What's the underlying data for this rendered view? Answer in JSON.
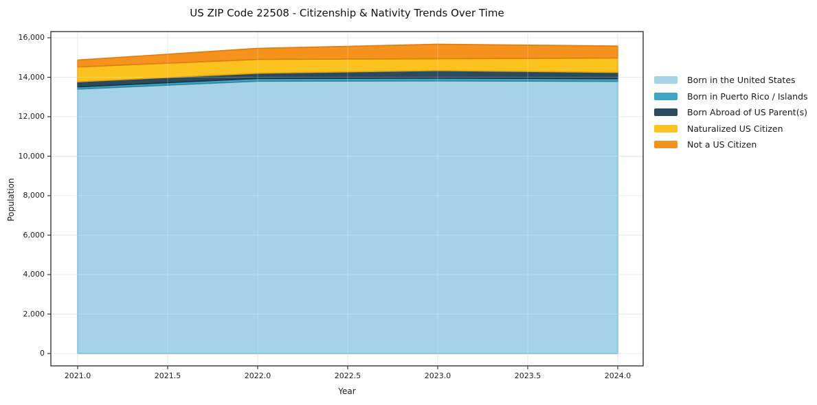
{
  "chart_data": {
    "type": "area",
    "stacked": true,
    "title": "US ZIP Code 22508 - Citizenship & Nativity Trends Over Time",
    "xlabel": "Year",
    "ylabel": "Population",
    "x": [
      2021,
      2022,
      2023,
      2024
    ],
    "x_tick_values": [
      2021.0,
      2021.5,
      2022.0,
      2022.5,
      2023.0,
      2023.5,
      2024.0
    ],
    "x_tick_labels": [
      "2021.0",
      "2021.5",
      "2022.0",
      "2022.5",
      "2023.0",
      "2023.5",
      "2024.0"
    ],
    "y_tick_values": [
      0,
      2000,
      4000,
      6000,
      8000,
      10000,
      12000,
      14000,
      16000
    ],
    "y_tick_labels": [
      "0",
      "2,000",
      "4,000",
      "6,000",
      "8,000",
      "10,000",
      "12,000",
      "14,000",
      "16,000"
    ],
    "ylim": [
      0,
      16750
    ],
    "grid": true,
    "legend_position": "right-outside",
    "series": [
      {
        "name": "Born in the United States",
        "color": "#A6D2E7",
        "edge": "#79B7D5",
        "values": [
          13400,
          13800,
          13815,
          13790
        ]
      },
      {
        "name": "Born in Puerto Rico / Islands",
        "color": "#3DA4C1",
        "edge": "#2C89A4",
        "values": [
          110,
          140,
          140,
          140
        ]
      },
      {
        "name": "Born Abroad of US Parent(s)",
        "color": "#294A5E",
        "edge": "#1A3340",
        "values": [
          260,
          265,
          385,
          315
        ]
      },
      {
        "name": "Naturalized US Citizen",
        "color": "#FCC21D",
        "edge": "#E3A411",
        "values": [
          750,
          700,
          600,
          730
        ]
      },
      {
        "name": "Not a US Citizen",
        "color": "#F6931E",
        "edge": "#E07D12",
        "values": [
          350,
          555,
          730,
          605
        ]
      }
    ],
    "totals": [
      14870,
      15460,
      15670,
      15580
    ]
  }
}
